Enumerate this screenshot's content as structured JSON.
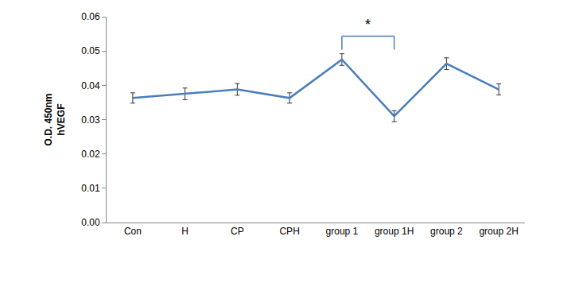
{
  "chart_data": {
    "type": "line",
    "y_label": "O.D. 450nm\nhVEGF",
    "categories": [
      "Con",
      "H",
      "CP",
      "CPH",
      "group 1",
      "group 1H",
      "group 2",
      "group 2H"
    ],
    "values": [
      0.0363,
      0.0375,
      0.0388,
      0.0363,
      0.0475,
      0.031,
      0.0463,
      0.0388
    ],
    "errors": [
      0.0015,
      0.0017,
      0.0017,
      0.0015,
      0.0017,
      0.0016,
      0.0017,
      0.0016
    ],
    "color": "#4a7ebb",
    "ylim": [
      0,
      0.06
    ],
    "yticks": [
      {
        "value": 0,
        "label": "0.00"
      },
      0.01,
      0.02,
      0.03,
      0.04,
      0.05,
      0.06
    ],
    "grid": false,
    "annotations": [
      {
        "text": "*",
        "categories": [
          "group 1",
          "group 1H"
        ]
      }
    ]
  }
}
